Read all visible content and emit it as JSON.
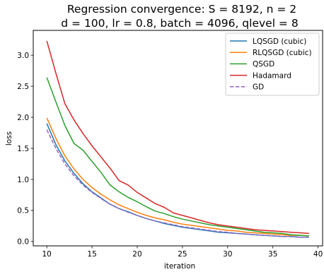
{
  "chart_data": {
    "type": "line",
    "title": "Regression convergence: S = 8192, n = 2",
    "subtitle": "d = 100, lr = 0.8, batch = 4096, qlevel = 8",
    "xlabel": "iteration",
    "ylabel": "loss",
    "xlim": [
      8.5,
      40.5
    ],
    "ylim": [
      -0.07,
      3.4
    ],
    "xticks": [
      "10",
      "15",
      "20",
      "25",
      "30",
      "35",
      "40"
    ],
    "yticks": [
      "0.0",
      "0.5",
      "1.0",
      "1.5",
      "2.0",
      "2.5",
      "3.0"
    ],
    "grid": false,
    "legend_position": "top-right",
    "x": [
      10,
      11,
      12,
      13,
      14,
      15,
      16,
      17,
      18,
      19,
      20,
      21,
      22,
      23,
      24,
      25,
      26,
      27,
      28,
      29,
      30,
      31,
      32,
      33,
      34,
      35,
      36,
      37,
      38,
      39
    ],
    "series": [
      {
        "name": "LQSGD (cubic)",
        "color": "#1f77b4",
        "dash": "solid",
        "values": [
          1.9,
          1.56,
          1.3,
          1.1,
          0.93,
          0.8,
          0.7,
          0.6,
          0.53,
          0.48,
          0.42,
          0.37,
          0.33,
          0.29,
          0.26,
          0.23,
          0.21,
          0.19,
          0.17,
          0.15,
          0.14,
          0.13,
          0.12,
          0.11,
          0.1,
          0.09,
          0.08,
          0.08,
          0.07,
          0.07
        ]
      },
      {
        "name": "RLQSGD (cubic)",
        "color": "#ff7f0e",
        "dash": "solid",
        "values": [
          1.99,
          1.66,
          1.38,
          1.17,
          1.0,
          0.87,
          0.76,
          0.67,
          0.59,
          0.53,
          0.47,
          0.42,
          0.38,
          0.35,
          0.31,
          0.28,
          0.26,
          0.24,
          0.22,
          0.2,
          0.18,
          0.17,
          0.15,
          0.14,
          0.13,
          0.12,
          0.11,
          0.1,
          0.1,
          0.09
        ]
      },
      {
        "name": "QSGD",
        "color": "#2ca02c",
        "dash": "solid",
        "values": [
          2.64,
          2.25,
          1.87,
          1.58,
          1.47,
          1.29,
          1.11,
          0.91,
          0.8,
          0.71,
          0.64,
          0.56,
          0.49,
          0.45,
          0.4,
          0.36,
          0.33,
          0.3,
          0.27,
          0.25,
          0.23,
          0.21,
          0.19,
          0.17,
          0.15,
          0.14,
          0.13,
          0.11,
          0.1,
          0.09
        ]
      },
      {
        "name": "Hadamard",
        "color": "#d62728",
        "dash": "solid",
        "values": [
          3.23,
          2.71,
          2.22,
          1.96,
          1.74,
          1.54,
          1.36,
          1.18,
          0.98,
          0.91,
          0.79,
          0.7,
          0.61,
          0.55,
          0.46,
          0.42,
          0.38,
          0.34,
          0.3,
          0.27,
          0.25,
          0.23,
          0.21,
          0.19,
          0.18,
          0.17,
          0.16,
          0.15,
          0.14,
          0.13
        ]
      },
      {
        "name": "GD",
        "color": "#9467bd",
        "dash": "dashed",
        "values": [
          1.8,
          1.5,
          1.25,
          1.06,
          0.91,
          0.79,
          0.69,
          0.6,
          0.53,
          0.47,
          0.42,
          0.37,
          0.33,
          0.3,
          0.27,
          0.24,
          0.22,
          0.2,
          0.18,
          0.16,
          0.15,
          0.13,
          0.12,
          0.11,
          0.1,
          0.09,
          0.08,
          0.08,
          0.07,
          0.07
        ]
      }
    ]
  }
}
